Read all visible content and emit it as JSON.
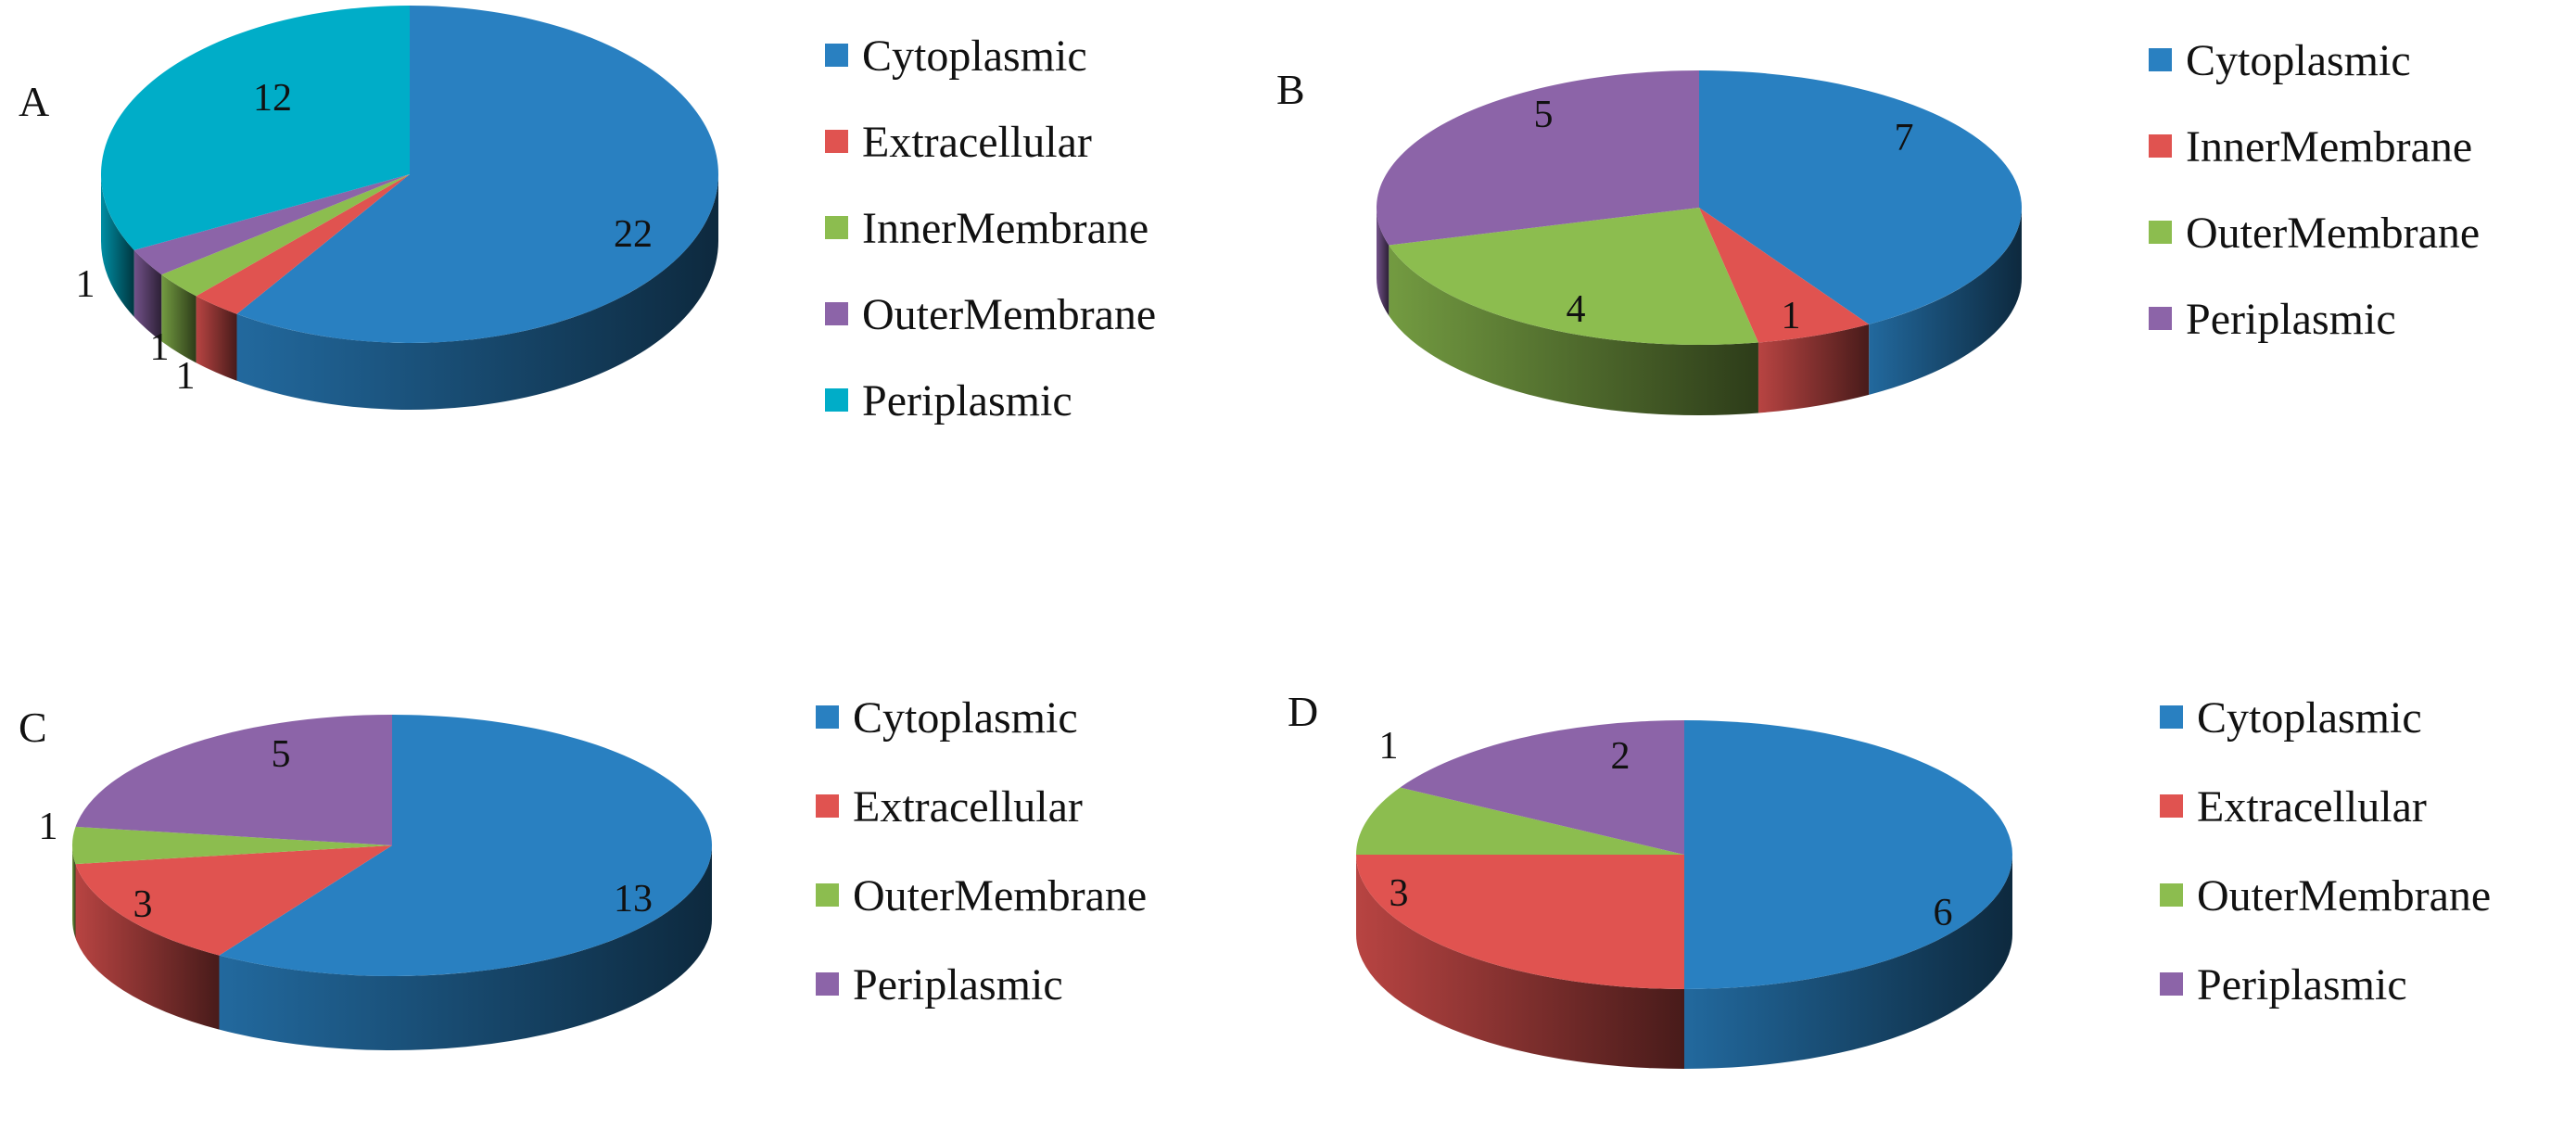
{
  "chart_data": [
    {
      "type": "pie",
      "panel": "A",
      "categories": [
        "Cytoplasmic",
        "Extracellular",
        "InnerMembrane",
        "OuterMembrane",
        "Periplasmic"
      ],
      "values": [
        22,
        1,
        1,
        1,
        12
      ],
      "data_labels": [
        "22",
        "1",
        "1",
        "1",
        "12"
      ],
      "legend": [
        "Cytoplasmic",
        "Extracellular",
        "InnerMembrane",
        "OuterMembrane",
        "Periplasmic"
      ],
      "legend_placement": "right",
      "style": "3d"
    },
    {
      "type": "pie",
      "panel": "B",
      "categories": [
        "Cytoplasmic",
        "InnerMembrane",
        "OuterMembrane",
        "Periplasmic"
      ],
      "values": [
        7,
        1,
        4,
        5
      ],
      "data_labels": [
        "7",
        "1",
        "4",
        "5"
      ],
      "legend": [
        "Cytoplasmic",
        "InnerMembrane",
        "OuterMembrane",
        "Periplasmic"
      ],
      "legend_placement": "right",
      "style": "3d"
    },
    {
      "type": "pie",
      "panel": "C",
      "categories": [
        "Cytoplasmic",
        "Extracellular",
        "OuterMembrane",
        "Periplasmic"
      ],
      "values": [
        13,
        3,
        1,
        5
      ],
      "data_labels": [
        "13",
        "3",
        "1",
        "5"
      ],
      "legend": [
        "Cytoplasmic",
        "Extracellular",
        "OuterMembrane",
        "Periplasmic"
      ],
      "legend_placement": "right",
      "style": "3d"
    },
    {
      "type": "pie",
      "panel": "D",
      "categories": [
        "Cytoplasmic",
        "Extracellular",
        "OuterMembrane",
        "Periplasmic"
      ],
      "values": [
        6,
        3,
        1,
        2
      ],
      "data_labels": [
        "6",
        "3",
        "1",
        "2"
      ],
      "legend": [
        "Cytoplasmic",
        "Extracellular",
        "OuterMembrane",
        "Periplasmic"
      ],
      "legend_placement": "right",
      "style": "3d"
    }
  ],
  "colors": {
    "Cytoplasmic": "#2980c1",
    "Extracellular": "#e05350",
    "InnerMembrane": "#8cbd4f",
    "OuterMembrane": "#8c64a8",
    "Periplasmic": "#00adc8"
  },
  "colors_b": {
    "Cytoplasmic": "#2980c1",
    "InnerMembrane": "#e05350",
    "OuterMembrane": "#8cbd4f",
    "Periplasmic": "#8c64a8"
  },
  "colors_cd": {
    "Cytoplasmic": "#2980c1",
    "Extracellular": "#e05350",
    "OuterMembrane": "#8cbd4f",
    "Periplasmic": "#8c64a8"
  }
}
